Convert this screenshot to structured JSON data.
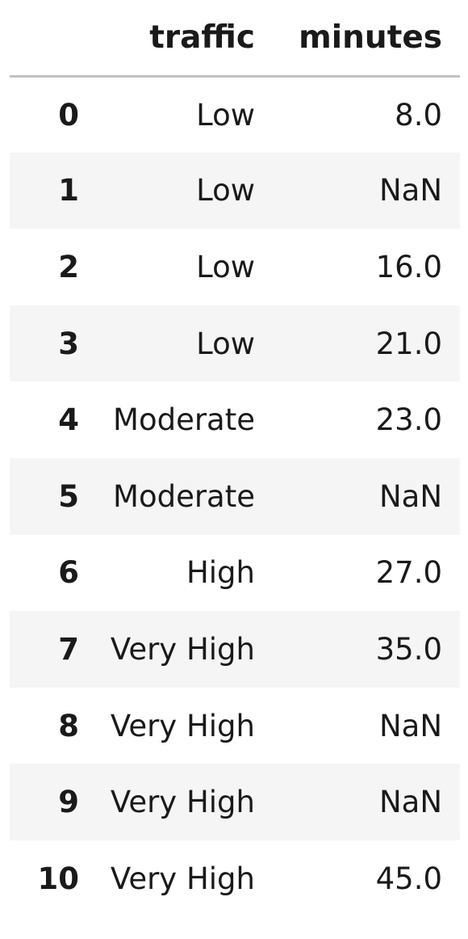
{
  "table": {
    "columns": [
      "",
      "traffic",
      "minutes"
    ],
    "rows": [
      {
        "index": "0",
        "traffic": "Low",
        "minutes": "8.0"
      },
      {
        "index": "1",
        "traffic": "Low",
        "minutes": "NaN"
      },
      {
        "index": "2",
        "traffic": "Low",
        "minutes": "16.0"
      },
      {
        "index": "3",
        "traffic": "Low",
        "minutes": "21.0"
      },
      {
        "index": "4",
        "traffic": "Moderate",
        "minutes": "23.0"
      },
      {
        "index": "5",
        "traffic": "Moderate",
        "minutes": "NaN"
      },
      {
        "index": "6",
        "traffic": "High",
        "minutes": "27.0"
      },
      {
        "index": "7",
        "traffic": "Very High",
        "minutes": "35.0"
      },
      {
        "index": "8",
        "traffic": "Very High",
        "minutes": "NaN"
      },
      {
        "index": "9",
        "traffic": "Very High",
        "minutes": "NaN"
      },
      {
        "index": "10",
        "traffic": "Very High",
        "minutes": "45.0"
      }
    ]
  },
  "colors": {
    "stripe": "#f5f5f5",
    "header_rule": "#c2c2c2",
    "text": "#1a1a1a"
  }
}
